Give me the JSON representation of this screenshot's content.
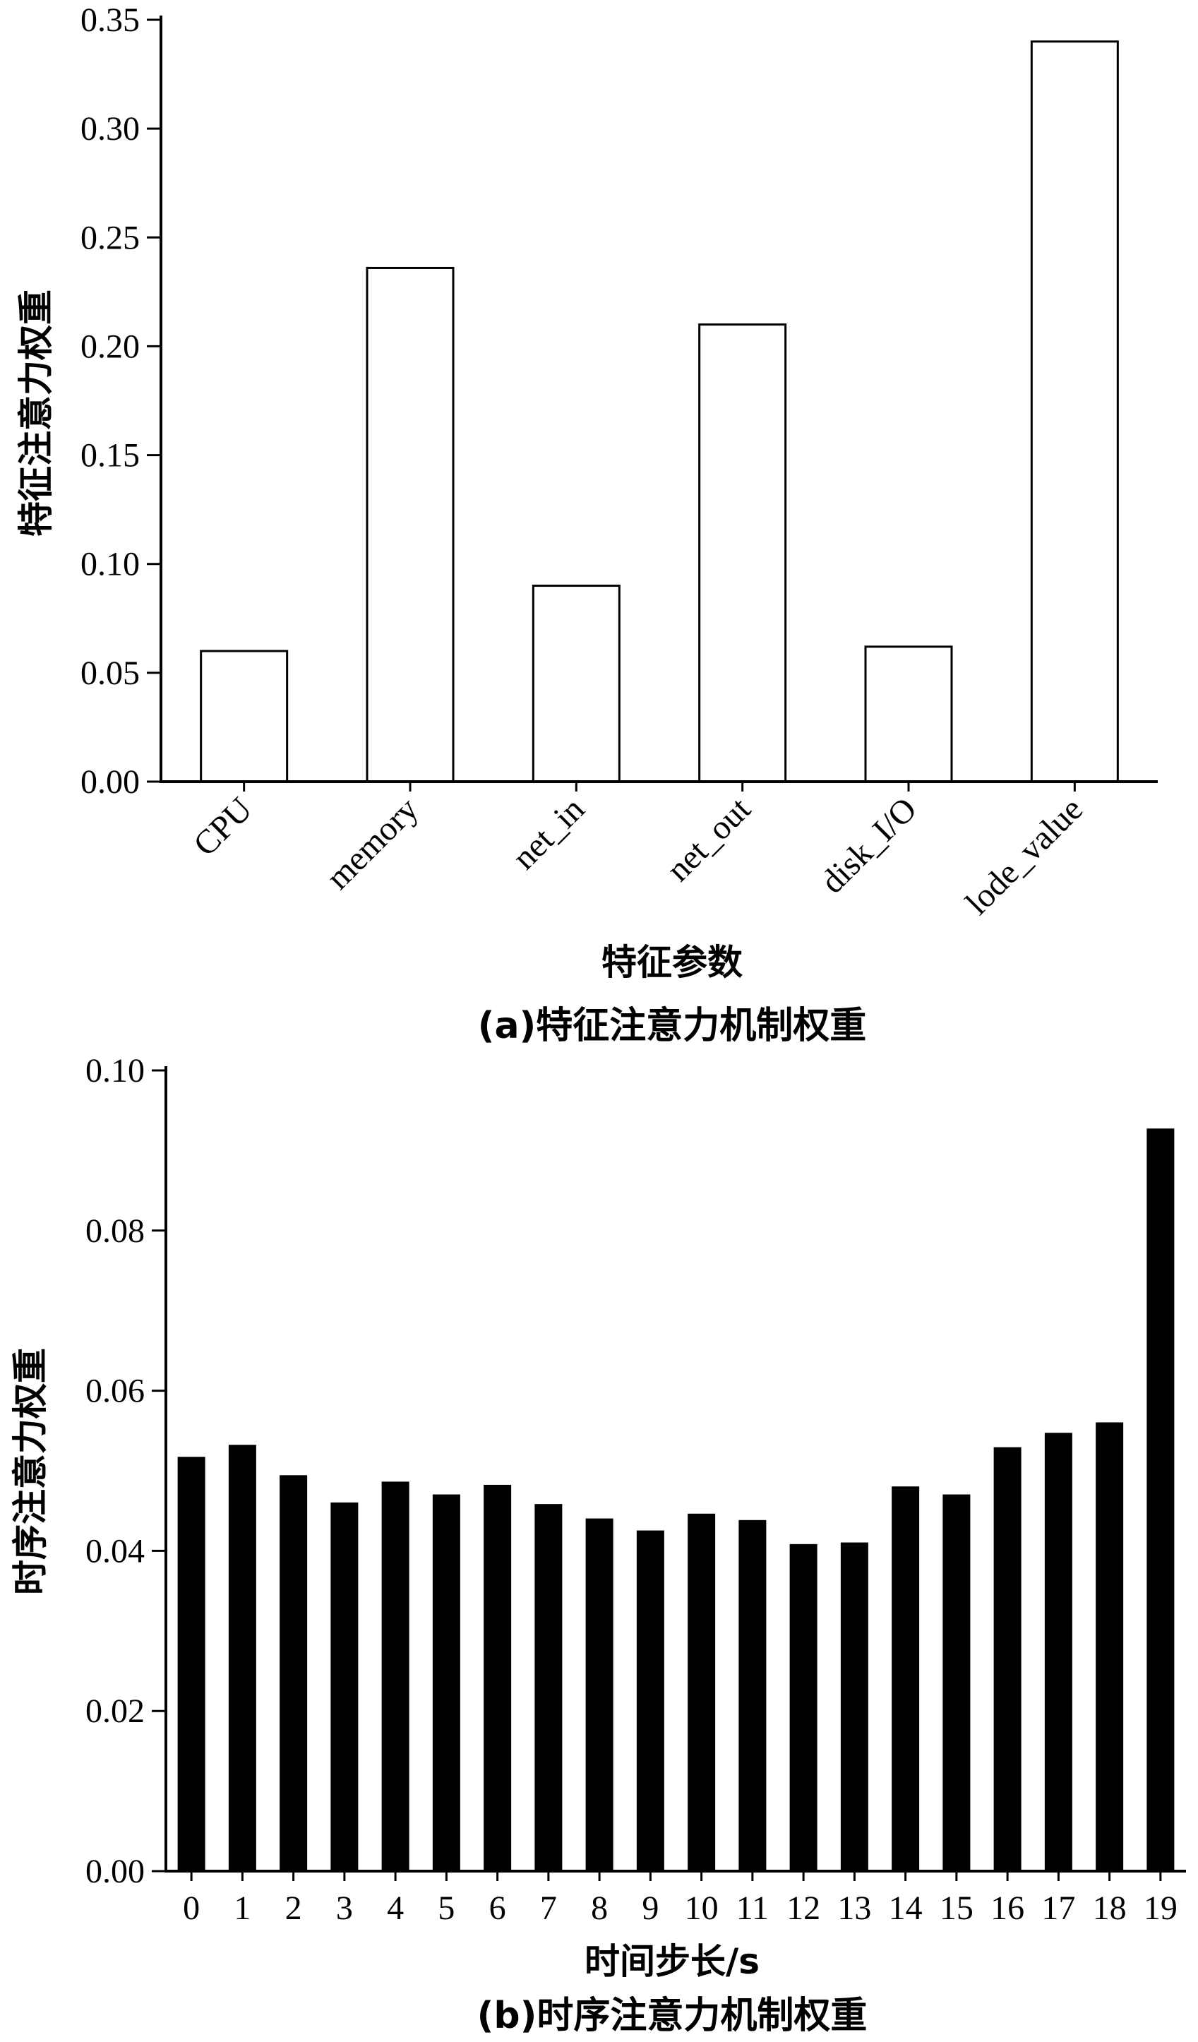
{
  "chart_data": [
    {
      "type": "bar",
      "caption": "(a)特征注意力机制权重",
      "xlabel": "特征参数",
      "ylabel": "特征注意力权重",
      "categories": [
        "CPU",
        "memory",
        "net_in",
        "net_out",
        "disk_I/O",
        "lode_value"
      ],
      "values": [
        0.06,
        0.236,
        0.09,
        0.21,
        0.062,
        0.34
      ],
      "ylim": [
        0,
        0.35
      ],
      "yticks": [
        "0.00",
        "0.05",
        "0.10",
        "0.15",
        "0.20",
        "0.25",
        "0.30",
        "0.35"
      ],
      "bar_fill": "#ffffff",
      "bar_stroke": "#000000",
      "grid": false
    },
    {
      "type": "bar",
      "caption": "(b)时序注意力机制权重",
      "xlabel": "时间步长/s",
      "ylabel": "时序注意力权重",
      "categories": [
        "0",
        "1",
        "2",
        "3",
        "4",
        "5",
        "6",
        "7",
        "8",
        "9",
        "10",
        "11",
        "12",
        "13",
        "14",
        "15",
        "16",
        "17",
        "18",
        "19"
      ],
      "values": [
        0.0517,
        0.0532,
        0.0494,
        0.046,
        0.0486,
        0.047,
        0.0482,
        0.0458,
        0.044,
        0.0425,
        0.0446,
        0.0438,
        0.0408,
        0.041,
        0.048,
        0.047,
        0.0529,
        0.0547,
        0.056,
        0.0927
      ],
      "ylim": [
        0,
        0.1
      ],
      "yticks": [
        "0.00",
        "0.02",
        "0.04",
        "0.06",
        "0.08",
        "0.10"
      ],
      "bar_fill": "#000000",
      "bar_stroke": "#000000",
      "grid": false
    }
  ]
}
